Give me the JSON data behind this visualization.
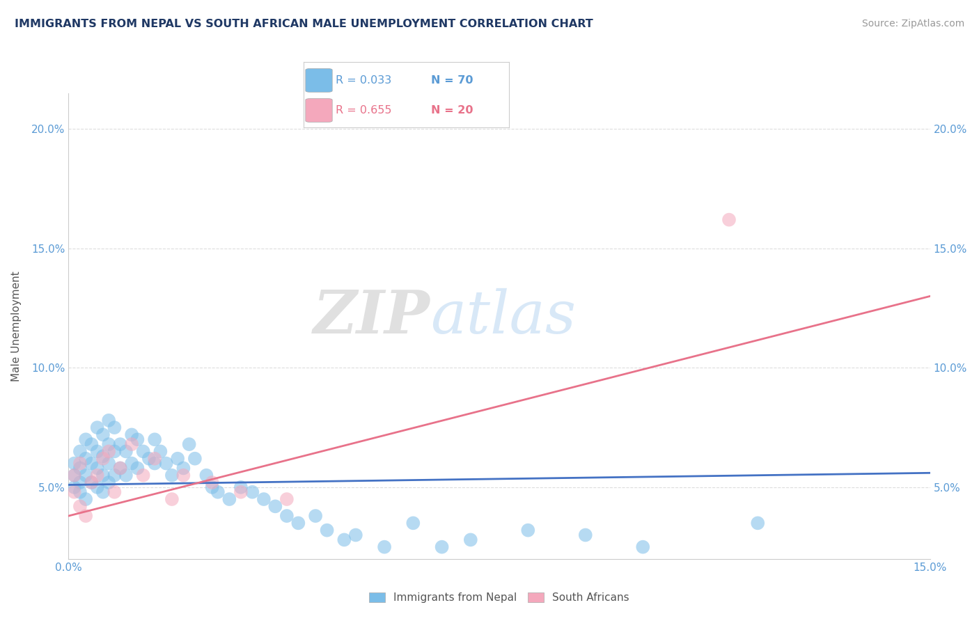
{
  "title": "IMMIGRANTS FROM NEPAL VS SOUTH AFRICAN MALE UNEMPLOYMENT CORRELATION CHART",
  "source": "Source: ZipAtlas.com",
  "ylabel": "Male Unemployment",
  "xlim": [
    0.0,
    0.15
  ],
  "ylim": [
    0.02,
    0.215
  ],
  "yticks": [
    0.05,
    0.1,
    0.15,
    0.2
  ],
  "xticks": [
    0.0,
    0.025,
    0.05,
    0.075,
    0.1,
    0.125,
    0.15
  ],
  "xtick_labels": [
    "0.0%",
    "",
    "",
    "",
    "",
    "",
    "15.0%"
  ],
  "ytick_labels": [
    "5.0%",
    "10.0%",
    "15.0%",
    "20.0%"
  ],
  "blue_color": "#7BBDE8",
  "pink_color": "#F4A8BC",
  "watermark_zip": "ZIP",
  "watermark_atlas": "atlas",
  "nepal_x": [
    0.001,
    0.001,
    0.001,
    0.002,
    0.002,
    0.002,
    0.002,
    0.003,
    0.003,
    0.003,
    0.003,
    0.004,
    0.004,
    0.004,
    0.005,
    0.005,
    0.005,
    0.005,
    0.006,
    0.006,
    0.006,
    0.006,
    0.007,
    0.007,
    0.007,
    0.007,
    0.008,
    0.008,
    0.008,
    0.009,
    0.009,
    0.01,
    0.01,
    0.011,
    0.011,
    0.012,
    0.012,
    0.013,
    0.014,
    0.015,
    0.015,
    0.016,
    0.017,
    0.018,
    0.019,
    0.02,
    0.021,
    0.022,
    0.024,
    0.025,
    0.026,
    0.028,
    0.03,
    0.032,
    0.034,
    0.036,
    0.038,
    0.04,
    0.043,
    0.045,
    0.048,
    0.05,
    0.055,
    0.06,
    0.065,
    0.07,
    0.08,
    0.09,
    0.1,
    0.12
  ],
  "nepal_y": [
    0.05,
    0.055,
    0.06,
    0.048,
    0.052,
    0.058,
    0.065,
    0.045,
    0.055,
    0.062,
    0.07,
    0.052,
    0.06,
    0.068,
    0.05,
    0.058,
    0.065,
    0.075,
    0.048,
    0.055,
    0.063,
    0.072,
    0.052,
    0.06,
    0.068,
    0.078,
    0.055,
    0.065,
    0.075,
    0.058,
    0.068,
    0.055,
    0.065,
    0.06,
    0.072,
    0.058,
    0.07,
    0.065,
    0.062,
    0.06,
    0.07,
    0.065,
    0.06,
    0.055,
    0.062,
    0.058,
    0.068,
    0.062,
    0.055,
    0.05,
    0.048,
    0.045,
    0.05,
    0.048,
    0.045,
    0.042,
    0.038,
    0.035,
    0.038,
    0.032,
    0.028,
    0.03,
    0.025,
    0.035,
    0.025,
    0.028,
    0.032,
    0.03,
    0.025,
    0.035
  ],
  "sa_x": [
    0.001,
    0.001,
    0.002,
    0.002,
    0.003,
    0.004,
    0.005,
    0.006,
    0.007,
    0.008,
    0.009,
    0.011,
    0.013,
    0.015,
    0.018,
    0.02,
    0.025,
    0.03,
    0.038,
    0.115
  ],
  "sa_y": [
    0.048,
    0.055,
    0.042,
    0.06,
    0.038,
    0.052,
    0.055,
    0.062,
    0.065,
    0.048,
    0.058,
    0.068,
    0.055,
    0.062,
    0.045,
    0.055,
    0.052,
    0.048,
    0.045,
    0.162
  ],
  "blue_line_x": [
    0.0,
    0.15
  ],
  "blue_line_y": [
    0.051,
    0.056
  ],
  "pink_line_x": [
    0.0,
    0.15
  ],
  "pink_line_y": [
    0.038,
    0.13
  ],
  "background_color": "#FFFFFF",
  "grid_color": "#DDDDDD"
}
